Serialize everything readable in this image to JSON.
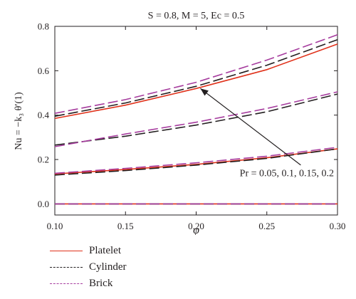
{
  "chart_data": {
    "type": "line",
    "title": "S = 0.8, M = 5, Ec = 0.5",
    "xlabel": "φ",
    "ylabel": "Nu = −k₃ θ′(1)",
    "xlim": [
      0.1,
      0.3
    ],
    "ylim": [
      -0.05,
      0.8
    ],
    "xticks": [
      "0.10",
      "0.15",
      "0.20",
      "0.25",
      "0.30"
    ],
    "xtick_values": [
      0.1,
      0.15,
      0.2,
      0.25,
      0.3
    ],
    "yticks": [
      "0.0",
      "0.2",
      "0.4",
      "0.6",
      "0.8"
    ],
    "ytick_values": [
      0.0,
      0.2,
      0.4,
      0.6,
      0.8
    ],
    "x": [
      0.1,
      0.15,
      0.2,
      0.25,
      0.3
    ],
    "series": [
      {
        "name": "Platelet",
        "style": "solid",
        "color": "#e0321b",
        "curves": [
          [
            0.0,
            0.0,
            0.0,
            0.0,
            0.0
          ],
          [
            0.135,
            0.155,
            0.178,
            0.208,
            0.248
          ],
          [
            0.385,
            0.445,
            0.52,
            0.605,
            0.72
          ]
        ]
      },
      {
        "name": "Cylinder",
        "style": "dashed",
        "color": "#231f20",
        "curves": [
          [
            0.0,
            0.0,
            0.0,
            0.0,
            0.0
          ],
          [
            0.13,
            0.15,
            0.175,
            0.205,
            0.248
          ],
          [
            0.265,
            0.305,
            0.355,
            0.415,
            0.495
          ],
          [
            0.395,
            0.455,
            0.53,
            0.625,
            0.74
          ]
        ]
      },
      {
        "name": "Brick",
        "style": "dashed",
        "color": "#a63c9e",
        "curves": [
          [
            0.0,
            0.0,
            0.0,
            0.0,
            0.0
          ],
          [
            0.138,
            0.16,
            0.185,
            0.215,
            0.255
          ],
          [
            0.258,
            0.315,
            0.368,
            0.43,
            0.505
          ],
          [
            0.408,
            0.47,
            0.548,
            0.648,
            0.762
          ]
        ]
      }
    ],
    "annotation": {
      "text": "Pr = 0.05, 0.1, 0.15, 0.2",
      "arrow_from": [
        0.274,
        0.175
      ],
      "arrow_to": [
        0.203,
        0.52
      ]
    }
  }
}
